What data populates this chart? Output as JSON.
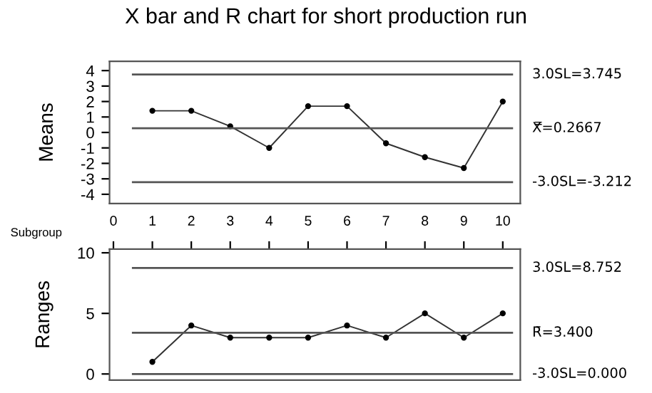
{
  "chart_data": [
    {
      "type": "line",
      "title": "X bar and R chart for short production run",
      "ylabel": "Means",
      "xlabel": "Subgroup",
      "x": [
        1,
        2,
        3,
        4,
        5,
        6,
        7,
        8,
        9,
        10
      ],
      "series": [
        {
          "color": "#333333",
          "values": [
            1.4,
            1.4,
            0.4,
            -1.0,
            1.7,
            1.7,
            -0.7,
            -1.6,
            -2.3,
            2.0
          ]
        }
      ],
      "xlim": [
        -0.1,
        10.45
      ],
      "xticks": [
        0,
        1,
        2,
        3,
        4,
        5,
        6,
        7,
        8,
        9,
        10
      ],
      "ylim": [
        -4.6,
        4.6
      ],
      "yticks": [
        -4,
        -3,
        -2,
        -1,
        0,
        1,
        2,
        3,
        4
      ],
      "ref_lines": [
        {
          "axis": "y",
          "value": 3.745,
          "label": "3.0SL=3.745",
          "color": "#555555"
        },
        {
          "axis": "y",
          "value": 0.2667,
          "label": "X̿=0.2667",
          "color": "#555555"
        },
        {
          "axis": "y",
          "value": -3.212,
          "label": "-3.0SL=-3.212",
          "color": "#555555"
        }
      ],
      "marker": "circle",
      "grid": false,
      "legend": false
    },
    {
      "type": "line",
      "ylabel": "Ranges",
      "x": [
        1,
        2,
        3,
        4,
        5,
        6,
        7,
        8,
        9,
        10
      ],
      "series": [
        {
          "color": "#333333",
          "values": [
            1,
            4,
            3,
            3,
            3,
            4,
            3,
            5,
            3,
            5
          ]
        }
      ],
      "xlim": [
        -0.1,
        10.45
      ],
      "xticks": [
        0,
        1,
        2,
        3,
        4,
        5,
        6,
        7,
        8,
        9,
        10
      ],
      "ylim": [
        -0.5,
        10.3
      ],
      "yticks": [
        0,
        5,
        10
      ],
      "ref_lines": [
        {
          "axis": "y",
          "value": 8.752,
          "label": "3.0SL=8.752",
          "color": "#555555"
        },
        {
          "axis": "y",
          "value": 3.4,
          "label": "R̄=3.400",
          "color": "#555555"
        },
        {
          "axis": "y",
          "value": 0,
          "label": "-3.0SL=0.000",
          "color": "#555555"
        }
      ],
      "marker": "circle",
      "grid": false,
      "legend": false,
      "tick_labels": "y"
    }
  ]
}
